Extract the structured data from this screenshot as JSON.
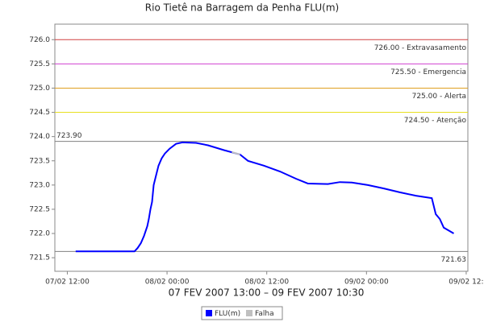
{
  "chart_data": {
    "type": "line",
    "title": "Rio Tietê na Barragem da Penha FLU(m)",
    "subtitle": "07 FEV 2007 13:00 – 09 FEV 2007 10:30",
    "xlim": [
      10.5,
      60.2
    ],
    "xticks": [
      {
        "value": 12,
        "label": "07/02 12:00"
      },
      {
        "value": 24,
        "label": "08/02 00:00"
      },
      {
        "value": 36,
        "label": "08/02 12:00"
      },
      {
        "value": 48,
        "label": "09/02 00:00"
      },
      {
        "value": 60,
        "label": "09/02 12:"
      }
    ],
    "ylim": [
      721.22,
      726.32
    ],
    "yticks": [
      721.5,
      {
        "value": 722,
        "label": "722.0"
      },
      722.5,
      {
        "value": 723,
        "label": "723.0"
      },
      723.5,
      {
        "value": 724,
        "label": "724.0"
      },
      724.5,
      {
        "value": 725,
        "label": "725.0"
      },
      725.5,
      {
        "value": 726,
        "label": "726.0"
      }
    ],
    "reference_lines": [
      {
        "value": 726,
        "label": "726.00 - Extravasamento",
        "color": "#d04040",
        "label_align": "right"
      },
      {
        "value": 725.5,
        "label": "725.50 - Emergencia",
        "color": "#d040d0",
        "label_align": "right"
      },
      {
        "value": 725,
        "label": "725.00 - Alerta",
        "color": "#e0a020",
        "label_align": "right"
      },
      {
        "value": 724.5,
        "label": "724.50 - Atenção",
        "color": "#e8e020",
        "label_align": "right"
      },
      {
        "value": 723.9,
        "label": "723.90",
        "color": "#808080",
        "label_align": "left"
      },
      {
        "value": 721.63,
        "label": "721.63",
        "color": "#808080",
        "label_align": "right"
      }
    ],
    "series": [
      {
        "name": "FLU(m)",
        "color": "#0000ff",
        "x": [
          13,
          20.08,
          20.46,
          20.85,
          21.23,
          21.62,
          21.81,
          22.0,
          22.2,
          22.39,
          22.68,
          22.97,
          23.35,
          23.74,
          24.31,
          25.08,
          25.85,
          27.49,
          28.93,
          30.85,
          32.78,
          33.74,
          35.66,
          37.59,
          39.51,
          40.95,
          43.36,
          44.8,
          46.24,
          48.17,
          50.09,
          52.01,
          53.94,
          55.86,
          56.34,
          56.82,
          57.3,
          58.5
        ],
        "values": [
          721.63,
          721.63,
          721.7,
          721.8,
          721.95,
          722.15,
          722.3,
          722.5,
          722.65,
          723.0,
          723.2,
          723.4,
          723.55,
          723.65,
          723.75,
          723.85,
          723.88,
          723.87,
          723.82,
          723.72,
          723.63,
          723.5,
          723.4,
          723.28,
          723.13,
          723.03,
          723.02,
          723.06,
          723.05,
          723.0,
          722.93,
          722.85,
          722.78,
          722.73,
          722.4,
          722.3,
          722.12,
          722.0
        ]
      },
      {
        "name": "Falha",
        "color": "#c0c0c0",
        "x": [
          31.8,
          32.78
        ],
        "values": [
          723.68,
          723.63
        ]
      }
    ]
  }
}
